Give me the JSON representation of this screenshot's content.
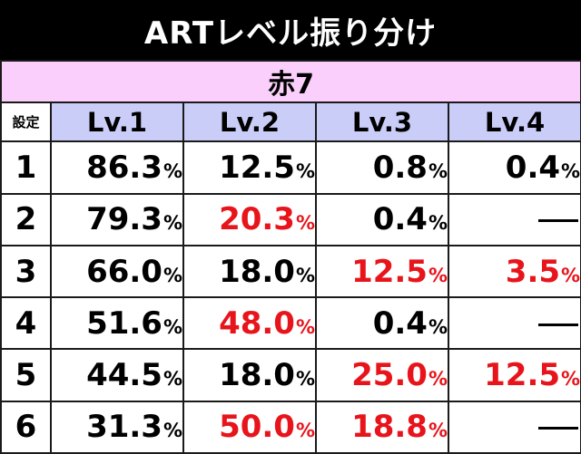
{
  "title": "ARTレベル振り分け",
  "group_label": "赤7",
  "setting_header": "設定",
  "levels": [
    "Lv.1",
    "Lv.2",
    "Lv.3",
    "Lv.4"
  ],
  "rows": [
    {
      "setting": "1",
      "values": [
        {
          "v": "86.3",
          "u": "%",
          "hl": false
        },
        {
          "v": "12.5",
          "u": "%",
          "hl": false
        },
        {
          "v": "0.8",
          "u": "%",
          "hl": false
        },
        {
          "v": "0.4",
          "u": "%",
          "hl": false
        }
      ]
    },
    {
      "setting": "2",
      "values": [
        {
          "v": "79.3",
          "u": "%",
          "hl": false
        },
        {
          "v": "20.3",
          "u": "%",
          "hl": true
        },
        {
          "v": "0.4",
          "u": "%",
          "hl": false
        },
        {
          "v": "—",
          "u": "",
          "hl": false
        }
      ]
    },
    {
      "setting": "3",
      "values": [
        {
          "v": "66.0",
          "u": "%",
          "hl": false
        },
        {
          "v": "18.0",
          "u": "%",
          "hl": false
        },
        {
          "v": "12.5",
          "u": "%",
          "hl": true
        },
        {
          "v": "3.5",
          "u": "%",
          "hl": true
        }
      ]
    },
    {
      "setting": "4",
      "values": [
        {
          "v": "51.6",
          "u": "%",
          "hl": false
        },
        {
          "v": "48.0",
          "u": "%",
          "hl": true
        },
        {
          "v": "0.4",
          "u": "%",
          "hl": false
        },
        {
          "v": "—",
          "u": "",
          "hl": false
        }
      ]
    },
    {
      "setting": "5",
      "values": [
        {
          "v": "44.5",
          "u": "%",
          "hl": false
        },
        {
          "v": "18.0",
          "u": "%",
          "hl": false
        },
        {
          "v": "25.0",
          "u": "%",
          "hl": true
        },
        {
          "v": "12.5",
          "u": "%",
          "hl": true
        }
      ]
    },
    {
      "setting": "6",
      "values": [
        {
          "v": "31.3",
          "u": "%",
          "hl": false
        },
        {
          "v": "50.0",
          "u": "%",
          "hl": true
        },
        {
          "v": "18.8",
          "u": "%",
          "hl": true
        },
        {
          "v": "—",
          "u": "",
          "hl": false
        }
      ]
    }
  ],
  "colors": {
    "title_bg": "#000000",
    "group_bg": "#fbcffb",
    "level_header_bg": "#c9cdf7",
    "highlight_text": "#e8141b"
  }
}
